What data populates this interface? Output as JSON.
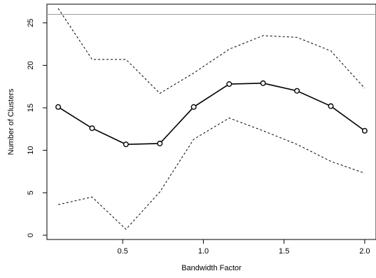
{
  "chart_data": {
    "type": "line",
    "title": "",
    "xlabel": "Bandwidth Factor",
    "ylabel": "Number of Clusters",
    "xlim": [
      0.03,
      2.07
    ],
    "ylim": [
      -0.5,
      27.2
    ],
    "x_ticks": [
      0.5,
      1.0,
      1.5,
      2.0
    ],
    "x_tick_labels": [
      "0.5",
      "1.0",
      "1.5",
      "2.0"
    ],
    "y_ticks": [
      0,
      5,
      10,
      15,
      20,
      25
    ],
    "y_tick_labels": [
      "0",
      "5",
      "10",
      "15",
      "20",
      "25"
    ],
    "grid": false,
    "legend": "none",
    "reference_line": {
      "y": 26,
      "color": "#999999"
    },
    "series": [
      {
        "style": "solid-with-circles",
        "color": "#000000",
        "x": [
          0.1,
          0.31,
          0.52,
          0.73,
          0.94,
          1.16,
          1.37,
          1.58,
          1.79,
          2.0
        ],
        "y": [
          15.1,
          12.6,
          10.7,
          10.8,
          15.1,
          17.8,
          17.9,
          17.0,
          15.2,
          12.3
        ]
      },
      {
        "style": "dotted",
        "color": "#000000",
        "x": [
          0.1,
          0.31,
          0.52,
          0.73,
          0.94,
          1.16,
          1.37,
          1.58,
          1.79,
          2.0
        ],
        "y": [
          26.7,
          20.7,
          20.7,
          16.7,
          19.1,
          21.9,
          23.5,
          23.3,
          21.7,
          17.3
        ]
      },
      {
        "style": "dotted",
        "color": "#000000",
        "x": [
          0.1,
          0.31,
          0.52,
          0.73,
          0.94,
          1.16,
          1.37,
          1.58,
          1.79,
          2.0
        ],
        "y": [
          3.6,
          4.5,
          0.7,
          5.1,
          11.3,
          13.8,
          12.3,
          10.7,
          8.7,
          7.3
        ]
      }
    ]
  }
}
